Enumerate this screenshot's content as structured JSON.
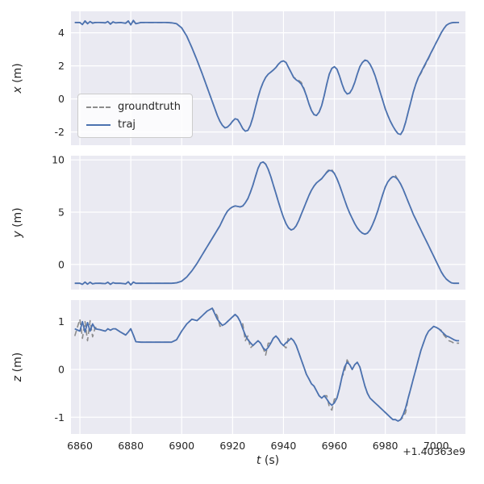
{
  "figure": {
    "legend_groundtruth": "groundtruth",
    "legend_traj": "traj",
    "colors": {
      "axes_bg": "#eaeaf2",
      "grid": "#ffffff",
      "traj": "#4c72b0",
      "groundtruth": "#8c8c8c",
      "text": "#262626"
    }
  },
  "chart_data": {
    "type": "line",
    "xlabel_var": "t",
    "xlabel_unit": " (s)",
    "x_offset_text": "+1.40363e9",
    "xticks": [
      6860,
      6880,
      6900,
      6920,
      6940,
      6960,
      6980,
      7000
    ],
    "xlim": [
      6856.5,
      7011.5
    ],
    "legend_loc": "center left of top subplot",
    "grid": true,
    "t": [
      6858,
      6860,
      6861,
      6862,
      6863,
      6864,
      6865,
      6866,
      6868,
      6870,
      6871,
      6872,
      6873,
      6874,
      6876,
      6878,
      6879,
      6880,
      6881,
      6882,
      6884,
      6886,
      6888,
      6890,
      6892,
      6894,
      6896,
      6898,
      6900,
      6902,
      6904,
      6906,
      6908,
      6910,
      6912,
      6914,
      6915,
      6916,
      6917,
      6918,
      6919,
      6920,
      6921,
      6922,
      6923,
      6924,
      6925,
      6926,
      6927,
      6928,
      6929,
      6930,
      6931,
      6932,
      6933,
      6934,
      6935,
      6936,
      6937,
      6938,
      6939,
      6940,
      6941,
      6942,
      6943,
      6944,
      6945,
      6946,
      6947,
      6948,
      6949,
      6950,
      6951,
      6952,
      6953,
      6954,
      6955,
      6956,
      6957,
      6958,
      6959,
      6960,
      6961,
      6962,
      6963,
      6964,
      6965,
      6966,
      6967,
      6968,
      6969,
      6970,
      6971,
      6972,
      6973,
      6974,
      6975,
      6976,
      6977,
      6978,
      6979,
      6980,
      6981,
      6982,
      6983,
      6984,
      6985,
      6986,
      6987,
      6988,
      6989,
      6990,
      6991,
      6992,
      6993,
      6994,
      6995,
      6996,
      6997,
      6998,
      6999,
      7000,
      7001,
      7002,
      7003,
      7004,
      7005,
      7006,
      7007,
      7008,
      7009
    ],
    "subplots": [
      {
        "ylabel_var": "x",
        "ylabel_unit": " (m)",
        "yticks": [
          -2,
          0,
          2,
          4
        ],
        "ylim": [
          -2.8,
          5.3
        ],
        "series": [
          {
            "name": "groundtruth",
            "values": [
              4.62,
              4.62,
              4.56,
              4.66,
              4.58,
              4.66,
              4.6,
              4.62,
              4.62,
              4.6,
              4.66,
              4.55,
              4.64,
              4.6,
              4.62,
              4.6,
              4.68,
              4.52,
              4.7,
              4.57,
              4.62,
              4.62,
              4.62,
              4.62,
              4.62,
              4.62,
              4.6,
              4.55,
              4.3,
              3.8,
              3.1,
              2.35,
              1.55,
              0.7,
              -0.15,
              -1.0,
              -1.35,
              -1.6,
              -1.75,
              -1.7,
              -1.55,
              -1.35,
              -1.2,
              -1.25,
              -1.5,
              -1.8,
              -1.95,
              -1.9,
              -1.6,
              -1.1,
              -0.5,
              0.1,
              0.6,
              1.0,
              1.3,
              1.5,
              1.62,
              1.75,
              1.9,
              2.1,
              2.25,
              2.3,
              2.2,
              1.9,
              1.6,
              1.32,
              1.2,
              1.12,
              1.0,
              0.65,
              0.2,
              -0.3,
              -0.7,
              -0.95,
              -1.0,
              -0.8,
              -0.4,
              0.2,
              0.9,
              1.5,
              1.85,
              1.95,
              1.8,
              1.4,
              0.9,
              0.5,
              0.3,
              0.35,
              0.6,
              1.0,
              1.5,
              1.95,
              2.2,
              2.35,
              2.3,
              2.1,
              1.8,
              1.4,
              0.9,
              0.4,
              -0.1,
              -0.6,
              -1.0,
              -1.35,
              -1.65,
              -1.9,
              -2.1,
              -2.15,
              -1.9,
              -1.4,
              -0.8,
              -0.2,
              0.4,
              0.9,
              1.3,
              1.55,
              1.85,
              2.15,
              2.45,
              2.78,
              3.1,
              3.4,
              3.7,
              4.0,
              4.25,
              4.45,
              4.55,
              4.6,
              4.62,
              4.62,
              4.62
            ]
          },
          {
            "name": "traj",
            "values": [
              4.62,
              4.62,
              4.5,
              4.72,
              4.55,
              4.68,
              4.58,
              4.62,
              4.62,
              4.6,
              4.68,
              4.52,
              4.66,
              4.6,
              4.62,
              4.58,
              4.72,
              4.48,
              4.75,
              4.55,
              4.62,
              4.62,
              4.62,
              4.62,
              4.62,
              4.62,
              4.6,
              4.55,
              4.3,
              3.8,
              3.1,
              2.35,
              1.55,
              0.7,
              -0.15,
              -1.0,
              -1.35,
              -1.6,
              -1.75,
              -1.7,
              -1.55,
              -1.35,
              -1.2,
              -1.25,
              -1.5,
              -1.8,
              -1.95,
              -1.9,
              -1.6,
              -1.1,
              -0.5,
              0.1,
              0.6,
              1.0,
              1.3,
              1.5,
              1.62,
              1.75,
              1.9,
              2.1,
              2.25,
              2.3,
              2.2,
              1.9,
              1.6,
              1.3,
              1.15,
              1.05,
              0.9,
              0.6,
              0.2,
              -0.3,
              -0.7,
              -0.95,
              -1.0,
              -0.8,
              -0.4,
              0.2,
              0.9,
              1.5,
              1.85,
              1.95,
              1.8,
              1.4,
              0.9,
              0.5,
              0.3,
              0.35,
              0.6,
              1.0,
              1.5,
              1.95,
              2.2,
              2.35,
              2.3,
              2.1,
              1.8,
              1.4,
              0.9,
              0.4,
              -0.1,
              -0.6,
              -1.0,
              -1.35,
              -1.65,
              -1.9,
              -2.1,
              -2.15,
              -1.9,
              -1.4,
              -0.8,
              -0.2,
              0.4,
              0.9,
              1.3,
              1.6,
              1.9,
              2.2,
              2.5,
              2.8,
              3.1,
              3.4,
              3.7,
              4.0,
              4.25,
              4.45,
              4.55,
              4.6,
              4.62,
              4.62,
              4.62
            ]
          }
        ]
      },
      {
        "ylabel_var": "y",
        "ylabel_unit": " (m)",
        "yticks": [
          0,
          5,
          10
        ],
        "ylim": [
          -2.4,
          10.4
        ],
        "series": [
          {
            "name": "groundtruth",
            "values": [
              -1.8,
              -1.8,
              -1.9,
              -1.68,
              -1.88,
              -1.7,
              -1.85,
              -1.8,
              -1.8,
              -1.83,
              -1.7,
              -1.9,
              -1.74,
              -1.8,
              -1.8,
              -1.85,
              -1.65,
              -1.95,
              -1.68,
              -1.8,
              -1.8,
              -1.8,
              -1.8,
              -1.8,
              -1.8,
              -1.8,
              -1.8,
              -1.75,
              -1.6,
              -1.2,
              -0.6,
              0.1,
              0.9,
              1.7,
              2.5,
              3.3,
              3.7,
              4.2,
              4.7,
              5.1,
              5.35,
              5.5,
              5.6,
              5.55,
              5.5,
              5.6,
              5.9,
              6.3,
              6.9,
              7.6,
              8.4,
              9.2,
              9.7,
              9.8,
              9.6,
              9.1,
              8.4,
              7.6,
              6.8,
              6.0,
              5.2,
              4.5,
              3.9,
              3.5,
              3.3,
              3.4,
              3.7,
              4.2,
              4.8,
              5.4,
              6.0,
              6.6,
              7.1,
              7.5,
              7.8,
              8.0,
              8.2,
              8.5,
              8.85,
              9.1,
              9.05,
              8.7,
              8.2,
              7.6,
              6.9,
              6.2,
              5.5,
              4.9,
              4.4,
              3.9,
              3.5,
              3.2,
              3.0,
              2.9,
              3.0,
              3.3,
              3.8,
              4.4,
              5.1,
              5.9,
              6.7,
              7.4,
              7.9,
              8.2,
              8.45,
              8.5,
              8.1,
              7.7,
              7.2,
              6.6,
              6.0,
              5.4,
              4.8,
              4.3,
              3.8,
              3.3,
              2.8,
              2.3,
              1.8,
              1.3,
              0.8,
              0.3,
              -0.2,
              -0.7,
              -1.1,
              -1.4,
              -1.6,
              -1.75,
              -1.8,
              -1.8,
              -1.8
            ]
          },
          {
            "name": "traj",
            "values": [
              -1.8,
              -1.8,
              -1.9,
              -1.68,
              -1.88,
              -1.7,
              -1.85,
              -1.8,
              -1.8,
              -1.83,
              -1.7,
              -1.9,
              -1.74,
              -1.8,
              -1.8,
              -1.85,
              -1.65,
              -1.95,
              -1.68,
              -1.8,
              -1.8,
              -1.8,
              -1.8,
              -1.8,
              -1.8,
              -1.8,
              -1.8,
              -1.75,
              -1.6,
              -1.2,
              -0.6,
              0.1,
              0.9,
              1.7,
              2.5,
              3.3,
              3.7,
              4.2,
              4.7,
              5.1,
              5.35,
              5.5,
              5.6,
              5.55,
              5.5,
              5.6,
              5.9,
              6.3,
              6.9,
              7.6,
              8.4,
              9.2,
              9.7,
              9.8,
              9.6,
              9.1,
              8.4,
              7.6,
              6.8,
              6.0,
              5.2,
              4.5,
              3.9,
              3.5,
              3.3,
              3.4,
              3.7,
              4.2,
              4.8,
              5.4,
              6.0,
              6.6,
              7.1,
              7.5,
              7.8,
              8.0,
              8.2,
              8.5,
              8.8,
              9.0,
              8.95,
              8.7,
              8.2,
              7.6,
              6.9,
              6.2,
              5.5,
              4.9,
              4.4,
              3.9,
              3.5,
              3.2,
              3.0,
              2.9,
              3.0,
              3.3,
              3.8,
              4.4,
              5.1,
              5.9,
              6.7,
              7.4,
              7.9,
              8.2,
              8.4,
              8.35,
              8.1,
              7.7,
              7.2,
              6.6,
              6.0,
              5.4,
              4.8,
              4.3,
              3.8,
              3.3,
              2.8,
              2.3,
              1.8,
              1.3,
              0.8,
              0.3,
              -0.2,
              -0.7,
              -1.1,
              -1.4,
              -1.6,
              -1.75,
              -1.8,
              -1.8,
              -1.8
            ]
          }
        ]
      },
      {
        "ylabel_var": "z",
        "ylabel_unit": " (m)",
        "yticks": [
          -1,
          0,
          1
        ],
        "ylim": [
          -1.35,
          1.45
        ],
        "series": [
          {
            "name": "groundtruth",
            "values": [
              0.7,
              1.05,
              0.65,
              1.0,
              0.6,
              1.02,
              0.68,
              0.88,
              0.83,
              0.8,
              0.85,
              0.82,
              0.85,
              0.85,
              0.78,
              0.72,
              0.78,
              0.85,
              0.72,
              0.58,
              0.57,
              0.57,
              0.57,
              0.57,
              0.57,
              0.57,
              0.57,
              0.62,
              0.8,
              0.95,
              1.05,
              1.02,
              1.12,
              1.22,
              1.28,
              1.12,
              0.9,
              0.92,
              0.95,
              1.0,
              1.05,
              1.1,
              1.15,
              1.1,
              1.0,
              0.95,
              0.6,
              0.7,
              0.45,
              0.5,
              0.55,
              0.6,
              0.55,
              0.45,
              0.3,
              0.55,
              0.55,
              0.65,
              0.7,
              0.64,
              0.55,
              0.5,
              0.45,
              0.68,
              0.65,
              0.6,
              0.5,
              0.35,
              0.2,
              0.05,
              -0.1,
              -0.2,
              -0.3,
              -0.35,
              -0.45,
              -0.55,
              -0.6,
              -0.55,
              -0.55,
              -0.78,
              -0.85,
              -0.62,
              -0.6,
              -0.4,
              -0.15,
              -0.05,
              0.2,
              0.1,
              0.0,
              0.1,
              0.15,
              0.05,
              -0.15,
              -0.35,
              -0.5,
              -0.6,
              -0.65,
              -0.7,
              -0.75,
              -0.8,
              -0.85,
              -0.9,
              -0.95,
              -1.0,
              -1.05,
              -1.05,
              -1.08,
              -1.05,
              -1.0,
              -0.9,
              -0.6,
              -0.4,
              -0.2,
              0.0,
              0.2,
              0.4,
              0.55,
              0.7,
              0.8,
              0.85,
              0.9,
              0.88,
              0.85,
              0.82,
              0.72,
              0.66,
              0.6,
              0.58,
              0.55,
              0.55,
              0.55
            ]
          },
          {
            "name": "traj",
            "values": [
              0.85,
              0.8,
              1.0,
              0.78,
              0.98,
              0.8,
              0.95,
              0.85,
              0.83,
              0.8,
              0.85,
              0.82,
              0.85,
              0.85,
              0.78,
              0.72,
              0.78,
              0.85,
              0.72,
              0.58,
              0.57,
              0.57,
              0.57,
              0.57,
              0.57,
              0.57,
              0.57,
              0.62,
              0.8,
              0.95,
              1.05,
              1.02,
              1.12,
              1.22,
              1.28,
              1.05,
              0.98,
              0.92,
              0.95,
              1.0,
              1.05,
              1.1,
              1.15,
              1.1,
              1.0,
              0.85,
              0.72,
              0.62,
              0.56,
              0.5,
              0.55,
              0.6,
              0.55,
              0.45,
              0.4,
              0.46,
              0.55,
              0.65,
              0.7,
              0.64,
              0.55,
              0.5,
              0.56,
              0.6,
              0.65,
              0.6,
              0.5,
              0.35,
              0.2,
              0.05,
              -0.1,
              -0.2,
              -0.3,
              -0.35,
              -0.45,
              -0.55,
              -0.6,
              -0.55,
              -0.62,
              -0.7,
              -0.75,
              -0.7,
              -0.6,
              -0.4,
              -0.15,
              0.05,
              0.15,
              0.1,
              0.0,
              0.1,
              0.15,
              0.05,
              -0.15,
              -0.35,
              -0.5,
              -0.6,
              -0.65,
              -0.7,
              -0.75,
              -0.8,
              -0.85,
              -0.9,
              -0.95,
              -1.0,
              -1.05,
              -1.05,
              -1.08,
              -1.05,
              -0.95,
              -0.8,
              -0.6,
              -0.4,
              -0.2,
              0.0,
              0.2,
              0.4,
              0.55,
              0.7,
              0.8,
              0.85,
              0.9,
              0.88,
              0.85,
              0.8,
              0.75,
              0.7,
              0.68,
              0.65,
              0.62,
              0.6,
              0.6
            ]
          }
        ]
      }
    ]
  }
}
